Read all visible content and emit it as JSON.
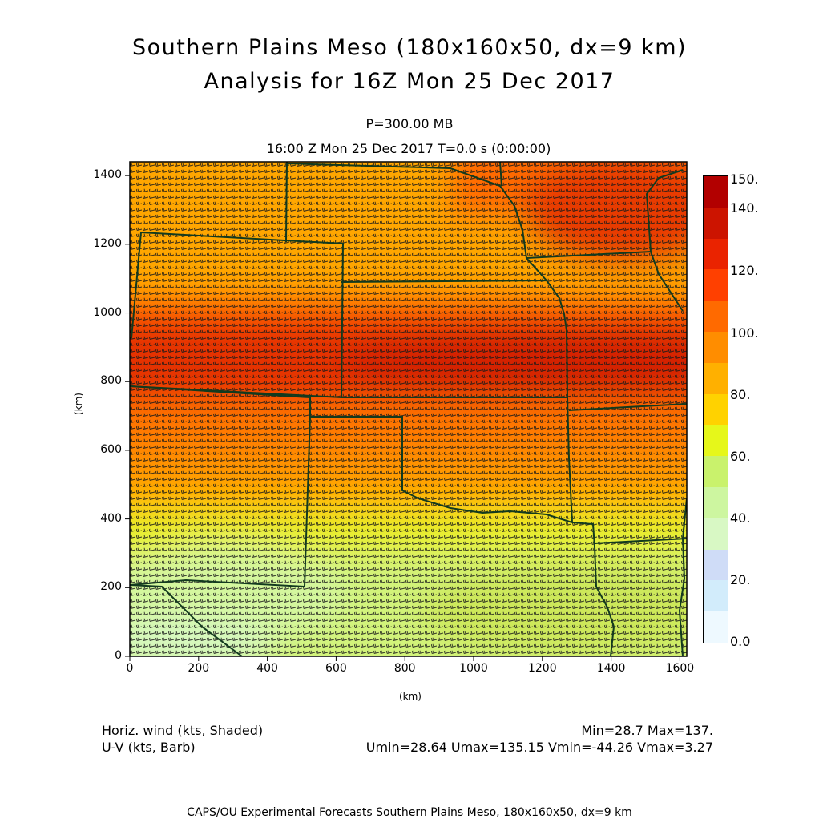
{
  "title": "Southern Plains Meso (180x160x50, dx=9 km)",
  "subtitle": "Analysis for 16Z Mon 25 Dec 2017",
  "level": "P=300.00 MB",
  "time_label": "16:00 Z Mon 25 Dec 2017    T=0.0 s (0:00:00)",
  "axes": {
    "x_label": "(km)",
    "y_label": "(km)",
    "x_ticks": [
      "0",
      "200",
      "400",
      "600",
      "800",
      "1000",
      "1200",
      "1400",
      "1600"
    ],
    "y_ticks": [
      "0",
      "200",
      "400",
      "600",
      "800",
      "1000",
      "1200",
      "1400"
    ],
    "x_range_km": [
      0,
      1620
    ],
    "y_range_km": [
      0,
      1440
    ]
  },
  "colorbar": {
    "labels": [
      "150.",
      "140.",
      "120.",
      "100.",
      "80.",
      "60.",
      "40.",
      "20.",
      "0.0"
    ],
    "levels": [
      0,
      10,
      20,
      30,
      40,
      50,
      60,
      70,
      80,
      90,
      100,
      110,
      120,
      130,
      140,
      150
    ],
    "colors": [
      "#eef9ff",
      "#d2ecfb",
      "#cfdcf7",
      "#d8f8c4",
      "#cdf6a0",
      "#c9f26c",
      "#e6f71a",
      "#ffd200",
      "#ffb000",
      "#ff8d00",
      "#ff6a00",
      "#ff4000",
      "#ea2300",
      "#cc1400",
      "#b20000"
    ]
  },
  "caption": {
    "left_line1": "Horiz. wind (kts, Shaded)",
    "left_line2": "U-V (kts, Barb)",
    "right_line1": "Min=28.7 Max=137.",
    "right_line2": "Umin=28.64 Umax=135.15 Vmin=-44.26 Vmax=3.27"
  },
  "footer": "CAPS/OU Experimental Forecasts  Southern Plains Meso, 180x160x50, dx=9 km",
  "colors": {
    "border": "#123a1e",
    "barb": "#1a1a1a",
    "frame": "#000000"
  }
}
